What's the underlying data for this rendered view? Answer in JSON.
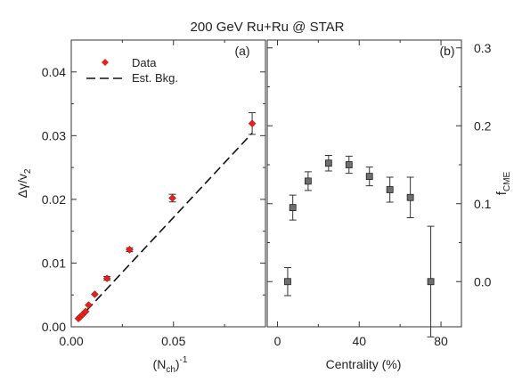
{
  "title": "200 GeV  Ru+Ru @ STAR",
  "chart_data": [
    {
      "type": "scatter",
      "panel_label": "(a)",
      "xlabel_main": "(N",
      "xlabel_sub": "ch",
      "xlabel_close": ")",
      "xlabel_sup": "-1",
      "ylabel_main": "Δγ/v",
      "ylabel_sub": "2",
      "xlim": [
        0,
        0.095
      ],
      "ylim": [
        0,
        0.045
      ],
      "x_ticks": [
        0.0,
        0.05
      ],
      "x_tick_labels": [
        "0.00",
        "0.05"
      ],
      "x_minor_ticks": [
        0.025,
        0.075
      ],
      "y_ticks": [
        0.0,
        0.01,
        0.02,
        0.03,
        0.04
      ],
      "y_tick_labels": [
        "0.00",
        "0.01",
        "0.02",
        "0.03",
        "0.04"
      ],
      "legend": [
        {
          "label": "Data",
          "marker": "diamond",
          "color": "#e8201a"
        },
        {
          "label": "Est. Bkg.",
          "marker": "dashed-line",
          "color": "#111111"
        }
      ],
      "legend_position": "top-left",
      "series": [
        {
          "name": "Data",
          "x": [
            0.0035,
            0.0045,
            0.0055,
            0.007,
            0.0085,
            0.0115,
            0.0175,
            0.0285,
            0.0495,
            0.0885
          ],
          "y": [
            0.0013,
            0.0016,
            0.0019,
            0.0024,
            0.0034,
            0.0051,
            0.0076,
            0.0121,
            0.0202,
            0.0319
          ],
          "yerr": [
            0.0001,
            0.0001,
            0.0001,
            0.0001,
            0.0002,
            0.0002,
            0.0003,
            0.0003,
            0.0006,
            0.0017
          ]
        }
      ],
      "background_line": {
        "x": [
          0.003,
          0.0885
        ],
        "y": [
          0.001,
          0.0304
        ]
      }
    },
    {
      "type": "scatter",
      "panel_label": "(b)",
      "xlabel": "Centrality (%)",
      "ylabel_main": "f",
      "ylabel_sub": "CME",
      "xlim": [
        -5,
        90
      ],
      "ylim": [
        -0.058,
        0.31
      ],
      "x_ticks": [
        0,
        40,
        80
      ],
      "x_tick_labels": [
        "0",
        "40",
        "80"
      ],
      "x_minor_ticks": [
        20,
        60
      ],
      "y_ticks": [
        0.0,
        0.1,
        0.2,
        0.3
      ],
      "y_tick_labels": [
        "0.0",
        "0.1",
        "0.2",
        "0.3"
      ],
      "series": [
        {
          "x": [
            5,
            7.5,
            15,
            25,
            35,
            45,
            55,
            65,
            75
          ],
          "y": [
            0.0,
            0.095,
            0.129,
            0.152,
            0.15,
            0.135,
            0.118,
            0.108,
            0.0
          ],
          "yerr": [
            0.018,
            0.016,
            0.012,
            0.01,
            0.011,
            0.012,
            0.016,
            0.026,
            0.071
          ]
        }
      ]
    }
  ]
}
